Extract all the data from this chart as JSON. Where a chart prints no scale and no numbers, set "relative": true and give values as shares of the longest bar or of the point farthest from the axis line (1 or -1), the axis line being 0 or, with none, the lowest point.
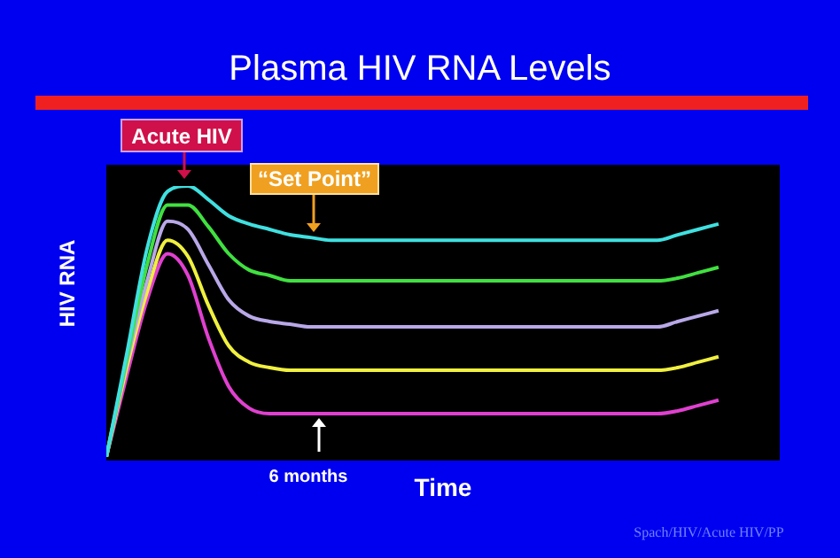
{
  "chart_data": {
    "type": "line",
    "title": "Plasma HIV RNA Levels",
    "xlabel": "Time",
    "ylabel": "HIV RNA",
    "relative": true,
    "categories": [
      null,
      null,
      null,
      null,
      null,
      null,
      null,
      null,
      null,
      null,
      null,
      null,
      null,
      null,
      null,
      null,
      null,
      null,
      null,
      null,
      null,
      null,
      null,
      null,
      null,
      null,
      null,
      null,
      null,
      null,
      null,
      null,
      null,
      null
    ],
    "series": [
      {
        "color": "#40e0e0",
        "values": [
          0,
          0.38,
          0.77,
          0.98,
          1,
          0.95,
          0.89,
          0.86,
          0.84,
          0.82,
          0.81,
          0.8,
          0.8,
          0.8,
          0.8,
          0.8,
          0.8,
          0.8,
          0.8,
          0.8,
          0.8,
          0.8,
          0.8,
          0.8,
          0.8,
          0.8,
          0.8,
          0.8,
          0.82,
          0.84,
          0.86,
          null,
          null,
          null
        ]
      },
      {
        "color": "#40e040",
        "values": [
          0,
          0.36,
          0.71,
          0.93,
          0.93,
          0.85,
          0.75,
          0.69,
          0.67,
          0.65,
          0.65,
          0.65,
          0.65,
          0.65,
          0.65,
          0.65,
          0.65,
          0.65,
          0.65,
          0.65,
          0.65,
          0.65,
          0.65,
          0.65,
          0.65,
          0.65,
          0.65,
          0.65,
          0.66,
          0.68,
          0.7,
          null,
          null,
          null
        ]
      },
      {
        "color": "#b8a8e8",
        "values": [
          0,
          0.35,
          0.65,
          0.87,
          0.84,
          0.71,
          0.58,
          0.52,
          0.5,
          0.49,
          0.48,
          0.48,
          0.48,
          0.48,
          0.48,
          0.48,
          0.48,
          0.48,
          0.48,
          0.48,
          0.48,
          0.48,
          0.48,
          0.48,
          0.48,
          0.48,
          0.48,
          0.48,
          0.5,
          0.52,
          0.54,
          null,
          null,
          null
        ]
      },
      {
        "color": "#f0f040",
        "values": [
          0,
          0.33,
          0.61,
          0.8,
          0.74,
          0.56,
          0.41,
          0.35,
          0.33,
          0.32,
          0.32,
          0.32,
          0.32,
          0.32,
          0.32,
          0.32,
          0.32,
          0.32,
          0.32,
          0.32,
          0.32,
          0.32,
          0.32,
          0.32,
          0.32,
          0.32,
          0.32,
          0.32,
          0.33,
          0.35,
          0.37,
          null,
          null,
          null
        ]
      },
      {
        "color": "#e040d0",
        "values": [
          0,
          0.3,
          0.58,
          0.75,
          0.67,
          0.44,
          0.26,
          0.18,
          0.16,
          0.16,
          0.16,
          0.16,
          0.16,
          0.16,
          0.16,
          0.16,
          0.16,
          0.16,
          0.16,
          0.16,
          0.16,
          0.16,
          0.16,
          0.16,
          0.16,
          0.16,
          0.16,
          0.16,
          0.17,
          0.19,
          0.21,
          null,
          null,
          null
        ]
      }
    ],
    "annotations": [
      "Acute HIV",
      "“Set Point”",
      "6 months",
      "Spach/HIV/Acute HIV/PP"
    ]
  }
}
